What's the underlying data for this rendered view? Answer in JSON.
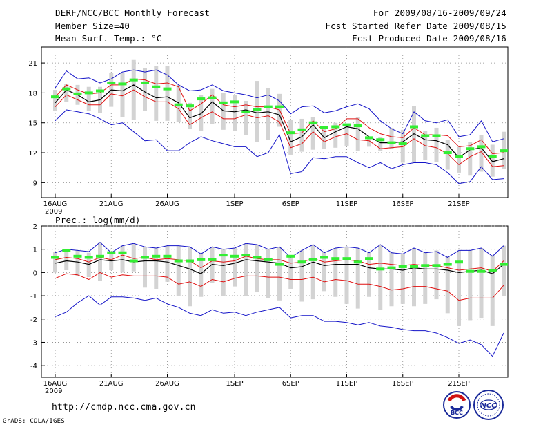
{
  "header": {
    "title": "DERF/NCC/BCC Monthly Forecast",
    "member_size": "Member Size=40",
    "variable": "Mean Surf. Temp.: °C",
    "forecast_range": "For 2009/08/16-2009/09/24",
    "fcst_started": "Fcst Started Refer Date 2009/08/15",
    "fcst_produced": "Fcst Produced Date 2009/08/16"
  },
  "footer": {
    "url": "http://cmdp.ncc.cma.gov.cn",
    "grads_credit": "GrADS: COLA/IGES",
    "logo_bcc_label": "BCC",
    "logo_ncc_label": "NCC"
  },
  "colors": {
    "ensemble_bar": "#d3d3d3",
    "max_min_line": "#1414c8",
    "spread_line": "#e01010",
    "mean_line": "#000000",
    "climatology_marker": "#33ee33",
    "grid": "#888888"
  },
  "chart_data": [
    {
      "type": "line",
      "name": "temperature",
      "ylabel": "Mean Surf. Temp.: °C",
      "ylim": [
        7.5,
        22.6
      ],
      "yticks": [
        9,
        12,
        15,
        18,
        21
      ],
      "x_tick_labels": [
        "16AUG",
        "21AUG",
        "26AUG",
        "1SEP",
        "6SEP",
        "11SEP",
        "16SEP",
        "21SEP"
      ],
      "x_tick_days": [
        0,
        5,
        10,
        16,
        21,
        26,
        31,
        36
      ],
      "year_label": "2009",
      "x_range": [
        0,
        39
      ],
      "days": 39,
      "grid": true,
      "series": [
        {
          "name": "max",
          "values": [
            18.5,
            20.2,
            19.4,
            19.5,
            19.0,
            19.4,
            20.1,
            20.3,
            20.1,
            20.3,
            19.8,
            18.8,
            18.2,
            18.3,
            18.8,
            18.2,
            18.0,
            17.8,
            17.5,
            17.8,
            17.2,
            15.9,
            16.6,
            16.7,
            16.0,
            16.2,
            16.6,
            16.9,
            16.4,
            15.2,
            14.4,
            13.9,
            16.1,
            15.2,
            15.0,
            15.3,
            13.6,
            13.8,
            15.2,
            13.1,
            13.4
          ]
        },
        {
          "name": "upper",
          "values": [
            17.6,
            18.8,
            18.3,
            17.9,
            18.0,
            18.8,
            18.8,
            19.4,
            19.3,
            18.9,
            19.0,
            18.6,
            16.2,
            16.9,
            17.8,
            16.8,
            16.6,
            16.8,
            16.6,
            16.6,
            16.3,
            13.9,
            14.0,
            15.2,
            14.1,
            14.4,
            15.4,
            15.4,
            14.5,
            13.9,
            13.6,
            13.5,
            14.5,
            13.8,
            13.8,
            13.7,
            12.6,
            12.7,
            13.3,
            11.9,
            12.0
          ]
        },
        {
          "name": "mean",
          "values": [
            17.0,
            18.3,
            17.8,
            17.1,
            17.3,
            18.3,
            18.2,
            18.8,
            18.1,
            17.5,
            17.6,
            17.0,
            15.5,
            15.9,
            17.1,
            16.2,
            16.1,
            16.3,
            16.0,
            16.1,
            15.8,
            13.1,
            13.6,
            14.8,
            13.5,
            14.1,
            14.6,
            14.4,
            13.6,
            13.0,
            13.0,
            13.1,
            13.9,
            13.3,
            13.2,
            12.8,
            11.5,
            12.3,
            12.5,
            11.1,
            11.4
          ]
        },
        {
          "name": "lower",
          "values": [
            16.6,
            17.8,
            17.3,
            16.8,
            16.8,
            17.9,
            17.7,
            18.3,
            17.6,
            17.1,
            17.1,
            16.4,
            14.8,
            15.5,
            16.1,
            15.4,
            15.4,
            15.8,
            15.5,
            15.7,
            15.1,
            12.5,
            12.9,
            14.1,
            13.1,
            13.6,
            13.9,
            13.3,
            13.2,
            12.4,
            12.5,
            12.6,
            13.4,
            12.7,
            12.5,
            11.9,
            10.8,
            11.6,
            12.1,
            10.6,
            10.7
          ]
        },
        {
          "name": "min",
          "values": [
            15.2,
            16.3,
            16.1,
            15.9,
            15.4,
            14.8,
            15.0,
            14.1,
            13.2,
            13.3,
            12.2,
            12.2,
            13.0,
            13.6,
            13.2,
            12.9,
            12.6,
            12.6,
            11.6,
            12.0,
            13.8,
            9.9,
            10.1,
            11.5,
            11.4,
            11.6,
            11.6,
            11.0,
            10.5,
            11.0,
            10.4,
            10.8,
            11.0,
            11.0,
            10.8,
            10.0,
            8.9,
            9.1,
            10.6,
            9.3,
            9.4
          ]
        },
        {
          "name": "climatology",
          "values": [
            17.6,
            18.4,
            17.9,
            18.0,
            18.2,
            19.0,
            18.9,
            19.3,
            19.0,
            18.6,
            18.4,
            16.8,
            16.7,
            17.4,
            17.5,
            17.0,
            17.1,
            16.1,
            16.3,
            16.6,
            16.6,
            14.0,
            14.3,
            15.0,
            14.5,
            14.6,
            14.8,
            14.7,
            13.5,
            13.3,
            13.0,
            12.9,
            14.6,
            13.7,
            13.7,
            12.0,
            11.6,
            12.4,
            12.6,
            11.6,
            12.2
          ]
        },
        {
          "name": "bar_top",
          "values": [
            18.3,
            18.9,
            18.8,
            18.6,
            18.6,
            20.0,
            20.0,
            21.3,
            20.5,
            20.7,
            20.7,
            18.8,
            17.0,
            17.8,
            18.4,
            18.0,
            17.8,
            17.2,
            19.2,
            18.5,
            17.9,
            15.3,
            15.4,
            15.6,
            14.7,
            15.0,
            14.9,
            15.6,
            13.6,
            13.6,
            14.5,
            14.3,
            16.7,
            14.2,
            14.5,
            13.3,
            12.6,
            13.1,
            13.8,
            12.8,
            14.1
          ]
        },
        {
          "name": "bar_bottom",
          "values": [
            16.2,
            17.1,
            16.8,
            16.2,
            16.0,
            16.6,
            15.6,
            15.3,
            16.2,
            15.2,
            15.2,
            15.1,
            14.4,
            14.2,
            14.9,
            14.3,
            14.2,
            13.8,
            13.1,
            13.3,
            14.6,
            11.8,
            12.1,
            12.3,
            12.4,
            12.5,
            12.7,
            12.2,
            12.6,
            12.2,
            12.4,
            11.0,
            11.1,
            11.3,
            11.1,
            10.3,
            10.0,
            9.7,
            10.1,
            9.6,
            10.4
          ]
        }
      ]
    },
    {
      "type": "line",
      "name": "precipitation",
      "ylabel": "Prec.: log(mm/d)",
      "ylim": [
        -4.5,
        2.0
      ],
      "yticks": [
        2,
        1,
        0,
        -1,
        -2,
        -3,
        -4
      ],
      "x_tick_labels": [
        "16AUG",
        "21AUG",
        "26AUG",
        "1SEP",
        "6SEP",
        "11SEP",
        "16SEP",
        "21SEP"
      ],
      "x_tick_days": [
        0,
        5,
        10,
        16,
        21,
        26,
        31,
        36
      ],
      "year_label": "2009",
      "x_range": [
        0,
        39
      ],
      "days": 39,
      "grid": true,
      "series": [
        {
          "name": "max",
          "values": [
            0.85,
            1.0,
            0.95,
            0.9,
            1.3,
            0.85,
            1.15,
            1.25,
            1.1,
            1.05,
            1.15,
            1.15,
            1.1,
            0.8,
            1.1,
            1.0,
            1.05,
            1.25,
            1.2,
            1.0,
            1.1,
            0.65,
            0.95,
            1.2,
            0.85,
            1.05,
            1.1,
            1.05,
            0.85,
            1.2,
            0.85,
            0.8,
            1.05,
            0.85,
            0.9,
            0.65,
            0.95,
            0.95,
            1.05,
            0.7,
            1.15
          ]
        },
        {
          "name": "upper",
          "values": [
            0.55,
            0.65,
            0.6,
            0.45,
            0.65,
            0.55,
            0.75,
            0.6,
            0.65,
            0.55,
            0.6,
            0.55,
            0.5,
            0.2,
            0.5,
            0.45,
            0.5,
            0.7,
            0.6,
            0.55,
            0.55,
            0.4,
            0.45,
            0.6,
            0.45,
            0.5,
            0.55,
            0.5,
            0.35,
            0.4,
            0.35,
            0.3,
            0.35,
            0.3,
            0.3,
            0.2,
            0.1,
            0.15,
            0.2,
            0.05,
            0.5
          ]
        },
        {
          "name": "mean",
          "values": [
            0.4,
            0.5,
            0.45,
            0.35,
            0.55,
            0.5,
            0.55,
            0.45,
            0.5,
            0.5,
            0.45,
            0.3,
            0.15,
            -0.05,
            0.35,
            0.3,
            0.4,
            0.55,
            0.5,
            0.45,
            0.4,
            0.2,
            0.25,
            0.45,
            0.3,
            0.35,
            0.35,
            0.35,
            0.2,
            0.15,
            0.15,
            0.1,
            0.2,
            0.15,
            0.15,
            0.1,
            0.0,
            0.05,
            0.1,
            -0.05,
            0.35
          ]
        },
        {
          "name": "lower",
          "values": [
            -0.25,
            -0.05,
            -0.1,
            -0.3,
            0.0,
            -0.2,
            -0.1,
            -0.15,
            -0.15,
            -0.15,
            -0.2,
            -0.5,
            -0.4,
            -0.6,
            -0.3,
            -0.4,
            -0.25,
            -0.15,
            -0.15,
            -0.2,
            -0.2,
            -0.3,
            -0.3,
            -0.2,
            -0.4,
            -0.3,
            -0.35,
            -0.5,
            -0.5,
            -0.6,
            -0.75,
            -0.7,
            -0.6,
            -0.6,
            -0.7,
            -0.8,
            -1.2,
            -1.1,
            -1.1,
            -1.1,
            -0.55
          ]
        },
        {
          "name": "min",
          "values": [
            -1.9,
            -1.7,
            -1.3,
            -1.0,
            -1.4,
            -1.05,
            -1.05,
            -1.1,
            -1.2,
            -1.1,
            -1.35,
            -1.5,
            -1.75,
            -1.85,
            -1.6,
            -1.75,
            -1.7,
            -1.85,
            -1.7,
            -1.6,
            -1.5,
            -1.95,
            -1.85,
            -1.85,
            -2.1,
            -2.1,
            -2.15,
            -2.25,
            -2.15,
            -2.3,
            -2.35,
            -2.45,
            -2.5,
            -2.5,
            -2.6,
            -2.8,
            -3.05,
            -2.9,
            -3.1,
            -3.6,
            -2.6
          ]
        },
        {
          "name": "climatology",
          "values": [
            0.65,
            0.95,
            0.7,
            0.65,
            0.7,
            0.85,
            0.85,
            0.5,
            0.65,
            0.7,
            0.7,
            0.5,
            0.5,
            0.55,
            0.55,
            0.75,
            0.7,
            0.75,
            0.65,
            0.55,
            0.35,
            0.7,
            0.45,
            0.55,
            0.65,
            0.6,
            0.6,
            0.45,
            0.6,
            0.15,
            0.2,
            0.25,
            0.25,
            0.3,
            0.3,
            0.35,
            0.45,
            0.05,
            0.05,
            0.1,
            0.35
          ]
        },
        {
          "name": "bar_top",
          "values": [
            0.9,
            1.0,
            0.95,
            0.85,
            1.3,
            0.9,
            1.15,
            1.25,
            1.1,
            1.05,
            1.15,
            1.15,
            1.1,
            0.85,
            1.1,
            1.0,
            1.05,
            1.25,
            1.2,
            1.0,
            1.1,
            0.7,
            0.95,
            1.2,
            0.9,
            1.05,
            1.1,
            1.05,
            0.9,
            1.2,
            0.9,
            0.8,
            1.05,
            0.9,
            0.95,
            0.7,
            0.95,
            0.95,
            1.05,
            0.75,
            1.15
          ]
        },
        {
          "name": "bar_bottom",
          "values": [
            0.0,
            0.1,
            -0.15,
            -0.2,
            -0.35,
            0.1,
            0.0,
            0.05,
            -0.65,
            -0.7,
            -0.4,
            -1.0,
            -1.45,
            -1.05,
            -0.45,
            -1.0,
            -0.6,
            -1.0,
            -0.85,
            -1.1,
            -1.2,
            -0.7,
            -1.25,
            -1.15,
            -0.8,
            -1.05,
            -1.35,
            -1.55,
            -1.05,
            -1.6,
            -1.45,
            -1.35,
            -1.45,
            -1.35,
            -1.15,
            -1.75,
            -2.3,
            -2.05,
            -1.95,
            -2.3,
            -1.0
          ]
        }
      ]
    }
  ]
}
